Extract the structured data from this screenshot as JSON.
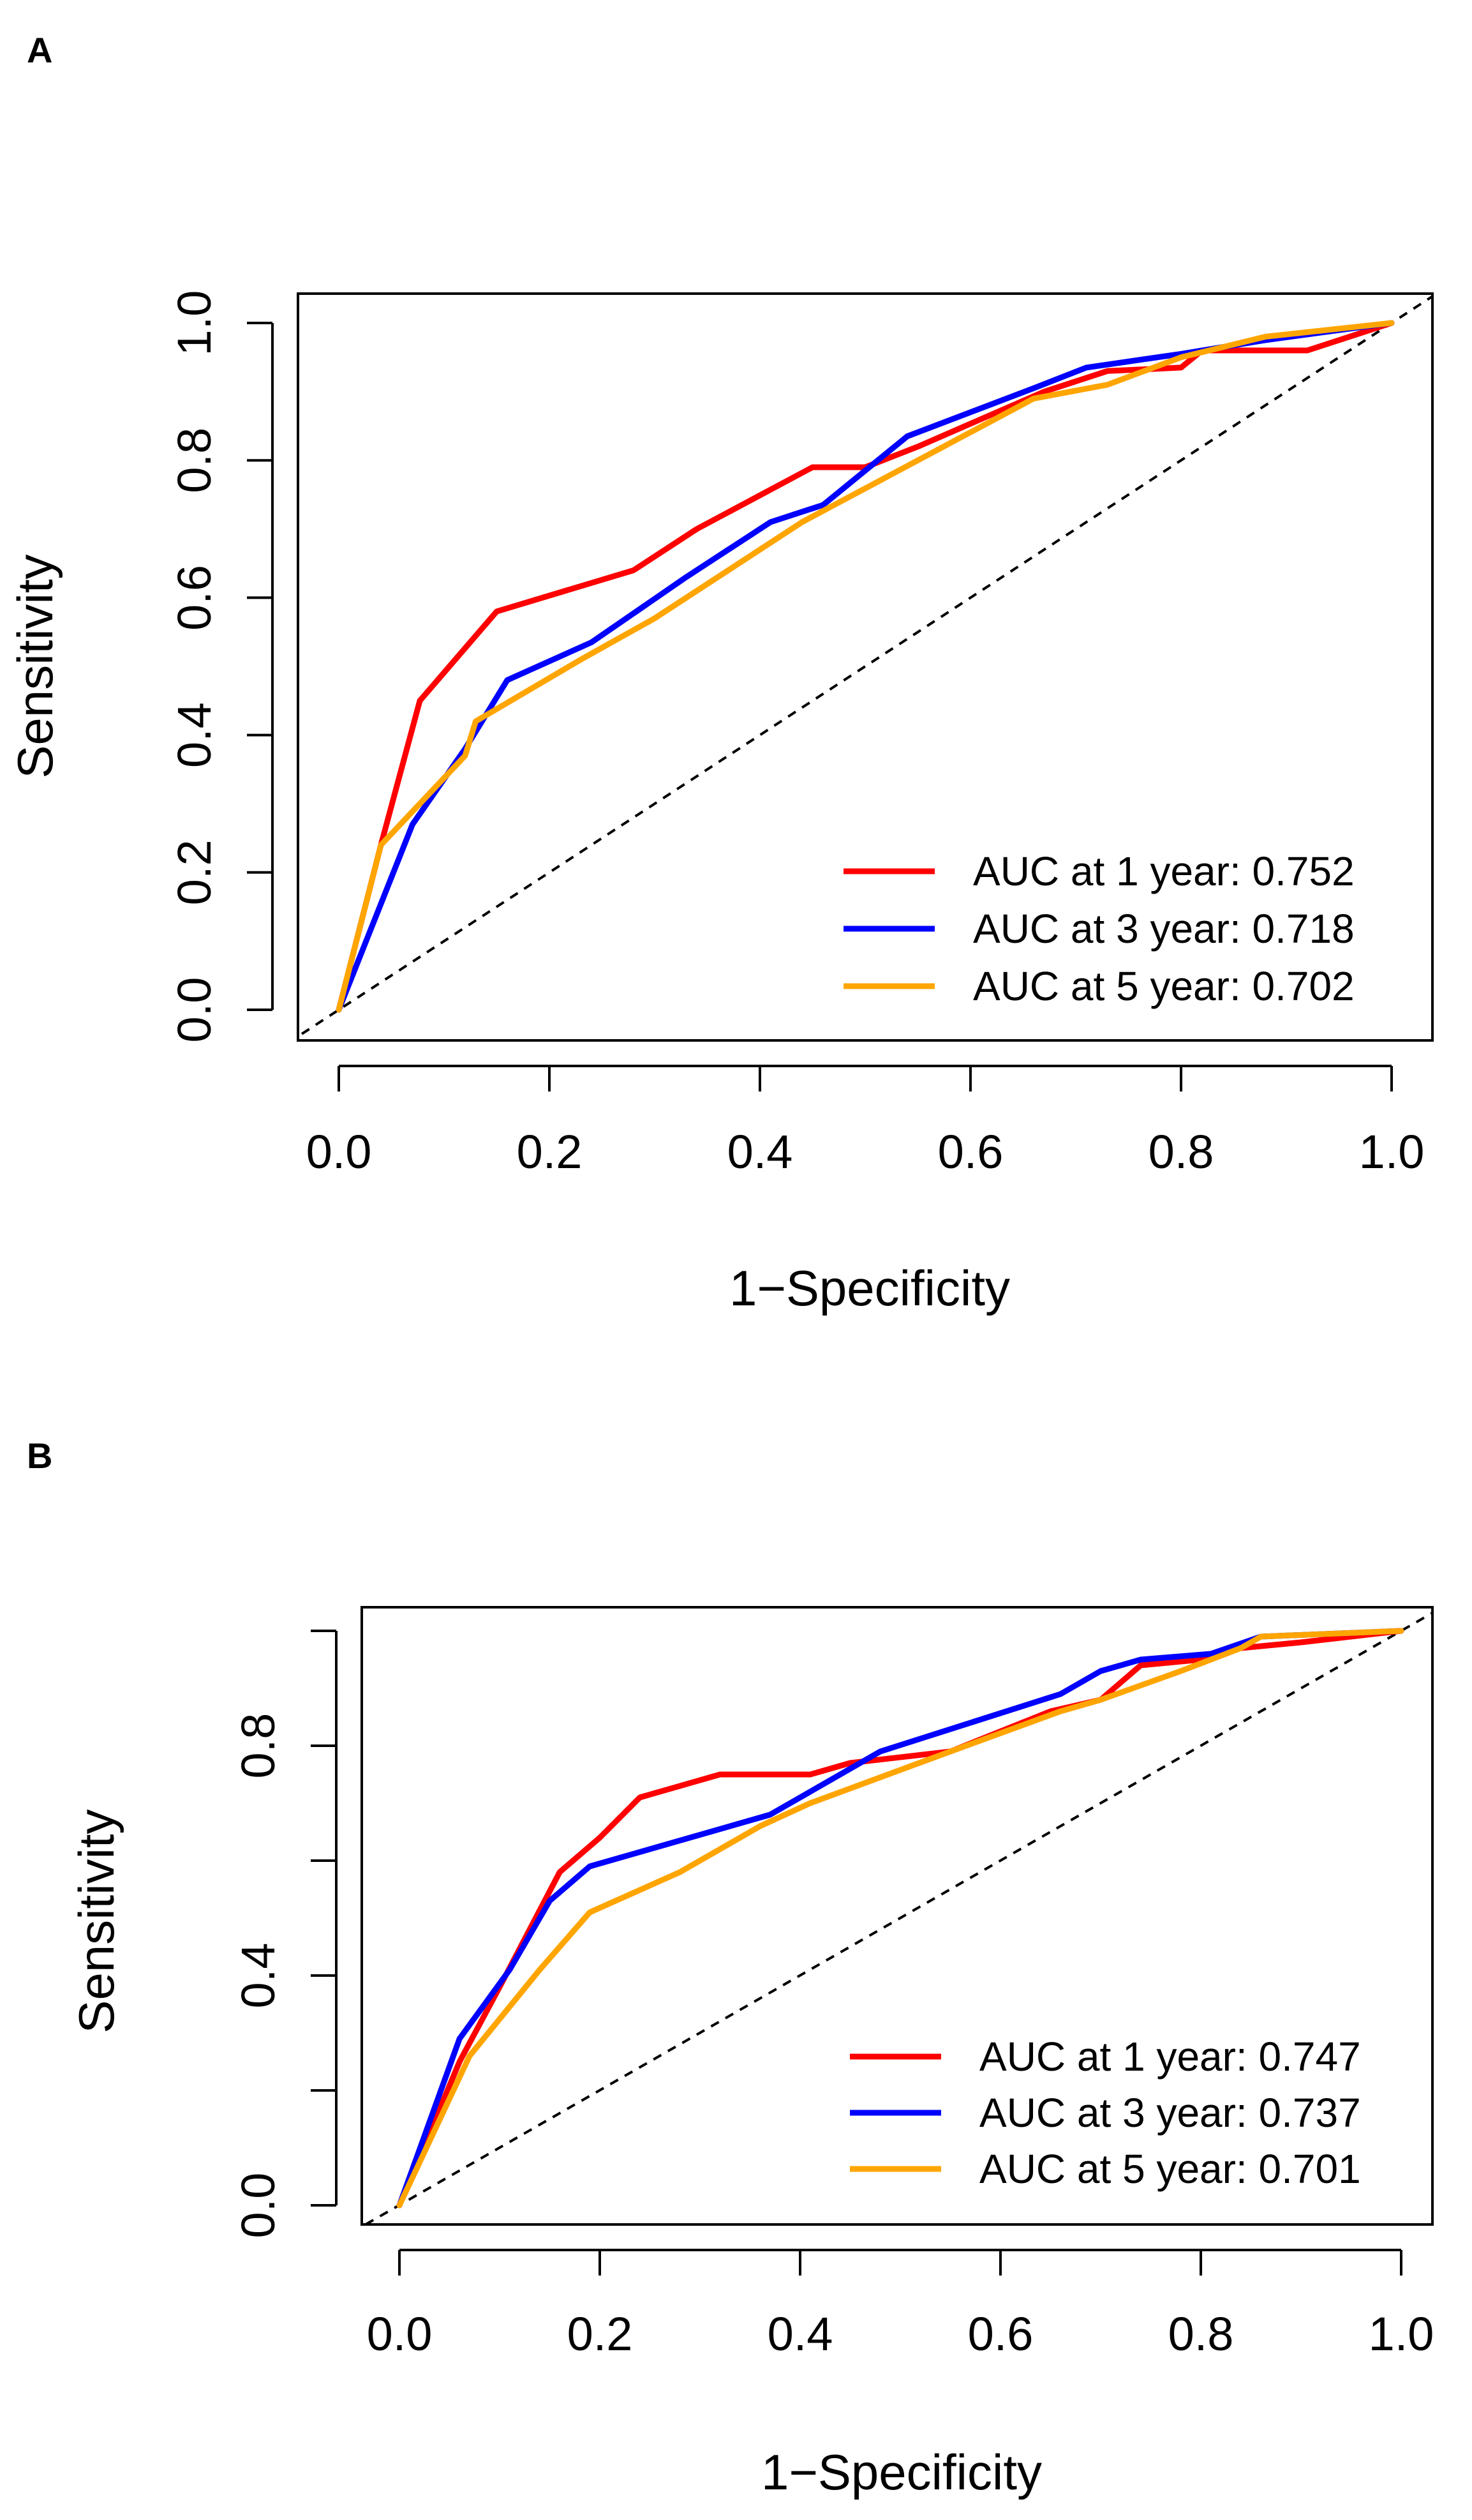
{
  "chart_data": [
    {
      "panel": "A",
      "type": "line",
      "xlabel": "1−Specificity",
      "ylabel": "Sensitivity",
      "xlim": [
        0,
        1
      ],
      "ylim": [
        0,
        1
      ],
      "xticks": [
        "0.0",
        "0.2",
        "0.4",
        "0.6",
        "0.8",
        "1.0"
      ],
      "yticks": [
        "0.0",
        "0.2",
        "0.4",
        "0.6",
        "0.8",
        "1.0"
      ],
      "xtick_values": [
        0,
        0.2,
        0.4,
        0.6,
        0.8,
        1.0
      ],
      "ytick_values": [
        0,
        0.2,
        0.4,
        0.6,
        0.8,
        1.0
      ],
      "reference_line": "diagonal dashed",
      "legend_position": "bottom-right",
      "series": [
        {
          "name": "AUC at 1 year: 0.752",
          "color": "#ff0000",
          "x": [
            0,
            0.04,
            0.077,
            0.15,
            0.28,
            0.34,
            0.45,
            0.5,
            0.55,
            0.67,
            0.73,
            0.8,
            0.82,
            0.92,
            1.0
          ],
          "y": [
            0,
            0.24,
            0.45,
            0.58,
            0.64,
            0.7,
            0.79,
            0.79,
            0.82,
            0.9,
            0.93,
            0.935,
            0.96,
            0.96,
            1.0
          ]
        },
        {
          "name": "AUC at 3 year: 0.718",
          "color": "#0000ff",
          "x": [
            0,
            0.07,
            0.12,
            0.16,
            0.24,
            0.33,
            0.41,
            0.46,
            0.54,
            0.66,
            0.71,
            0.8,
            0.88,
            1.0
          ],
          "y": [
            0,
            0.27,
            0.38,
            0.48,
            0.535,
            0.63,
            0.71,
            0.735,
            0.835,
            0.905,
            0.935,
            0.955,
            0.975,
            1.0
          ]
        },
        {
          "name": "AUC at 5 year: 0.702",
          "color": "#ffa500",
          "x": [
            0,
            0.04,
            0.12,
            0.13,
            0.23,
            0.3,
            0.44,
            0.55,
            0.66,
            0.73,
            0.8,
            0.88,
            1.0
          ],
          "y": [
            0,
            0.24,
            0.37,
            0.42,
            0.51,
            0.57,
            0.71,
            0.8,
            0.89,
            0.91,
            0.95,
            0.98,
            1.0
          ]
        }
      ]
    },
    {
      "panel": "B",
      "type": "line",
      "xlabel": "1−Specificity",
      "ylabel": "Sensitivity",
      "xlim": [
        0,
        1
      ],
      "ylim": [
        0,
        1
      ],
      "xticks": [
        "0.0",
        "0.2",
        "0.4",
        "0.6",
        "0.8",
        "1.0"
      ],
      "yticks": [
        "0.0",
        "",
        "0.4",
        "",
        "0.8",
        ""
      ],
      "xtick_values": [
        0,
        0.2,
        0.4,
        0.6,
        0.8,
        1.0
      ],
      "ytick_values": [
        0,
        0.2,
        0.4,
        0.6,
        0.8,
        1.0
      ],
      "reference_line": "diagonal dashed",
      "legend_position": "bottom-right",
      "series": [
        {
          "name": "AUC at 1 year: 0.747",
          "color": "#ff0000",
          "x": [
            0,
            0.06,
            0.1,
            0.16,
            0.2,
            0.24,
            0.32,
            0.41,
            0.45,
            0.55,
            0.65,
            0.7,
            0.74,
            0.8,
            0.84,
            0.9,
            1.0
          ],
          "y": [
            0,
            0.25,
            0.38,
            0.58,
            0.64,
            0.71,
            0.75,
            0.75,
            0.77,
            0.79,
            0.86,
            0.88,
            0.94,
            0.95,
            0.97,
            0.98,
            1.0
          ]
        },
        {
          "name": "AUC at 3 year: 0.737",
          "color": "#0000ff",
          "x": [
            0,
            0.06,
            0.11,
            0.15,
            0.19,
            0.37,
            0.48,
            0.66,
            0.7,
            0.74,
            0.81,
            0.86,
            1.0
          ],
          "y": [
            0,
            0.29,
            0.41,
            0.53,
            0.59,
            0.68,
            0.79,
            0.89,
            0.93,
            0.95,
            0.96,
            0.99,
            1.0
          ]
        },
        {
          "name": "AUC at 5 year: 0.701",
          "color": "#ffa500",
          "x": [
            0,
            0.07,
            0.14,
            0.17,
            0.19,
            0.28,
            0.36,
            0.41,
            0.55,
            0.66,
            0.7,
            0.78,
            0.81,
            0.84,
            0.86,
            1.0
          ],
          "y": [
            0,
            0.26,
            0.41,
            0.47,
            0.51,
            0.58,
            0.66,
            0.7,
            0.79,
            0.86,
            0.88,
            0.93,
            0.95,
            0.97,
            0.99,
            1.0
          ]
        }
      ]
    }
  ]
}
